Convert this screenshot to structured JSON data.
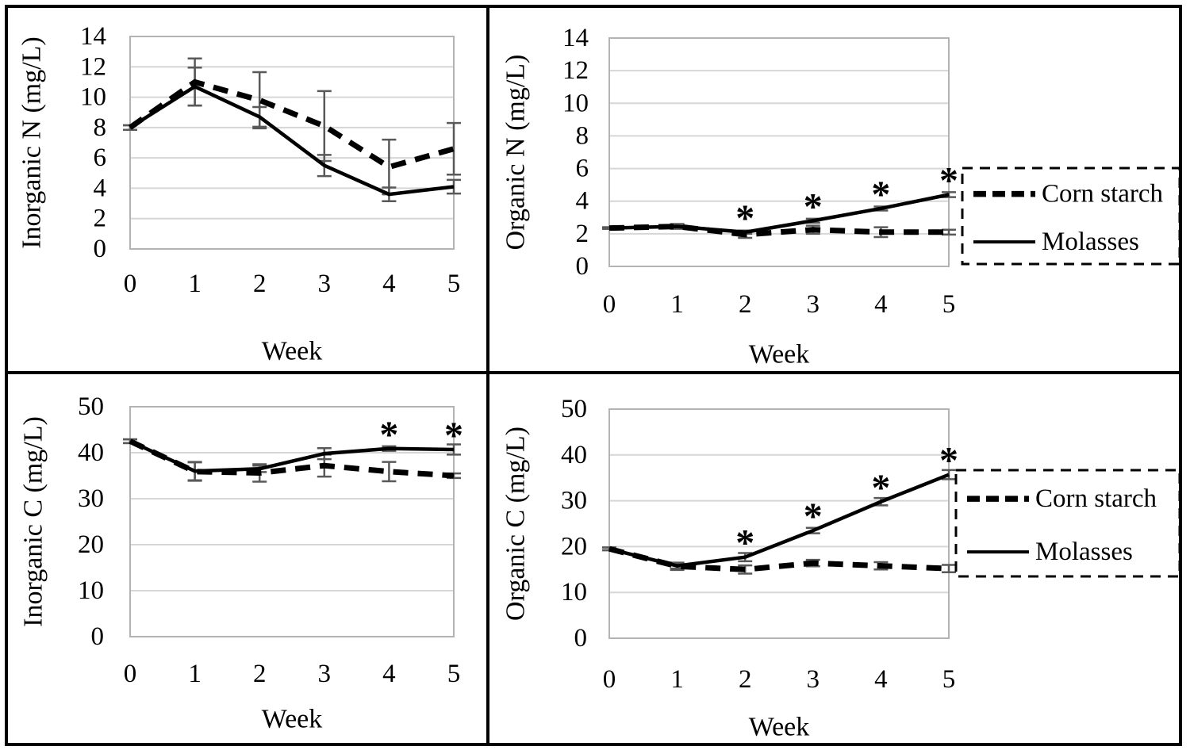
{
  "figure": {
    "description": "Four line charts (2x2) of nitrogen and carbon fractions over time",
    "xlabel": "Week",
    "significance_marker": "*"
  },
  "legend": {
    "items": [
      {
        "label": "Corn starch",
        "style": "dashed"
      },
      {
        "label": "Molasses",
        "style": "solid"
      }
    ]
  },
  "colors": {
    "line": "#000000",
    "error_bar": "#595959",
    "gridline": "#d6d6d6",
    "plot_border": "#b3b3b3",
    "background": "#ffffff",
    "frame": "#000000"
  },
  "chart_data": [
    {
      "type": "line",
      "position": "top-left",
      "ylabel": "Inorganic N (mg/L)",
      "xlabel": "Week",
      "ylim": [
        0,
        14
      ],
      "yticks": [
        0,
        2,
        4,
        6,
        8,
        10,
        12,
        14
      ],
      "categories": [
        "0",
        "1",
        "2",
        "3",
        "4",
        "5"
      ],
      "grid": true,
      "legend_visible": false,
      "series": [
        {
          "name": "Corn starch",
          "style": "dashed",
          "values": [
            8.0,
            11.0,
            9.8,
            8.1,
            5.4,
            6.6
          ],
          "errors": [
            0.15,
            1.55,
            1.85,
            2.3,
            1.8,
            1.7
          ]
        },
        {
          "name": "Molasses",
          "style": "solid",
          "values": [
            8.0,
            10.7,
            8.7,
            5.5,
            3.6,
            4.1
          ],
          "errors": [
            0.15,
            1.25,
            0.65,
            0.7,
            0.45,
            0.45
          ]
        }
      ],
      "significance_weeks": []
    },
    {
      "type": "line",
      "position": "top-right",
      "ylabel": "Organic N (mg/L)",
      "xlabel": "Week",
      "ylim": [
        0,
        14
      ],
      "yticks": [
        0,
        2,
        4,
        6,
        8,
        10,
        12,
        14
      ],
      "categories": [
        "0",
        "1",
        "2",
        "3",
        "4",
        "5"
      ],
      "grid": true,
      "legend_visible": true,
      "series": [
        {
          "name": "Corn starch",
          "style": "dashed",
          "values": [
            2.35,
            2.45,
            1.95,
            2.25,
            2.1,
            2.1
          ],
          "errors": [
            0.05,
            0.15,
            0.2,
            0.25,
            0.3,
            0.15
          ]
        },
        {
          "name": "Molasses",
          "style": "solid",
          "values": [
            2.35,
            2.45,
            2.1,
            2.8,
            3.55,
            4.4
          ],
          "errors": [
            0.05,
            0.1,
            0.1,
            0.12,
            0.12,
            0.15
          ]
        }
      ],
      "significance_weeks": [
        2,
        3,
        4,
        5
      ]
    },
    {
      "type": "line",
      "position": "bottom-left",
      "ylabel": "Inorganic C (mg/L)",
      "xlabel": "Week",
      "ylim": [
        0,
        50
      ],
      "yticks": [
        0,
        10,
        20,
        30,
        40,
        50
      ],
      "categories": [
        "0",
        "1",
        "2",
        "3",
        "4",
        "5"
      ],
      "grid": true,
      "legend_visible": false,
      "series": [
        {
          "name": "Corn starch",
          "style": "dashed",
          "values": [
            42.5,
            35.9,
            35.6,
            37.2,
            35.9,
            35.0
          ],
          "errors": [
            0.4,
            2.0,
            1.9,
            2.4,
            2.1,
            0.5
          ]
        },
        {
          "name": "Molasses",
          "style": "solid",
          "values": [
            42.5,
            36.0,
            36.5,
            39.8,
            40.9,
            40.7
          ],
          "errors": [
            0.4,
            2.0,
            0.7,
            1.2,
            0.5,
            1.1
          ]
        }
      ],
      "significance_weeks": [
        4,
        5
      ]
    },
    {
      "type": "line",
      "position": "bottom-right",
      "ylabel": "Organic C (mg/L)",
      "xlabel": "Week",
      "ylim": [
        0,
        50
      ],
      "yticks": [
        0,
        10,
        20,
        30,
        40,
        50
      ],
      "categories": [
        "0",
        "1",
        "2",
        "3",
        "4",
        "5"
      ],
      "grid": true,
      "legend_visible": true,
      "series": [
        {
          "name": "Corn starch",
          "style": "dashed",
          "values": [
            19.5,
            15.7,
            15.0,
            16.4,
            15.8,
            15.2
          ],
          "errors": [
            0.3,
            0.8,
            0.9,
            0.7,
            0.8,
            0.8
          ]
        },
        {
          "name": "Molasses",
          "style": "solid",
          "values": [
            19.5,
            15.8,
            17.7,
            23.5,
            29.8,
            35.7
          ],
          "errors": [
            0.3,
            0.6,
            0.9,
            0.6,
            0.8,
            1.0
          ]
        }
      ],
      "significance_weeks": [
        2,
        3,
        4,
        5
      ]
    }
  ]
}
